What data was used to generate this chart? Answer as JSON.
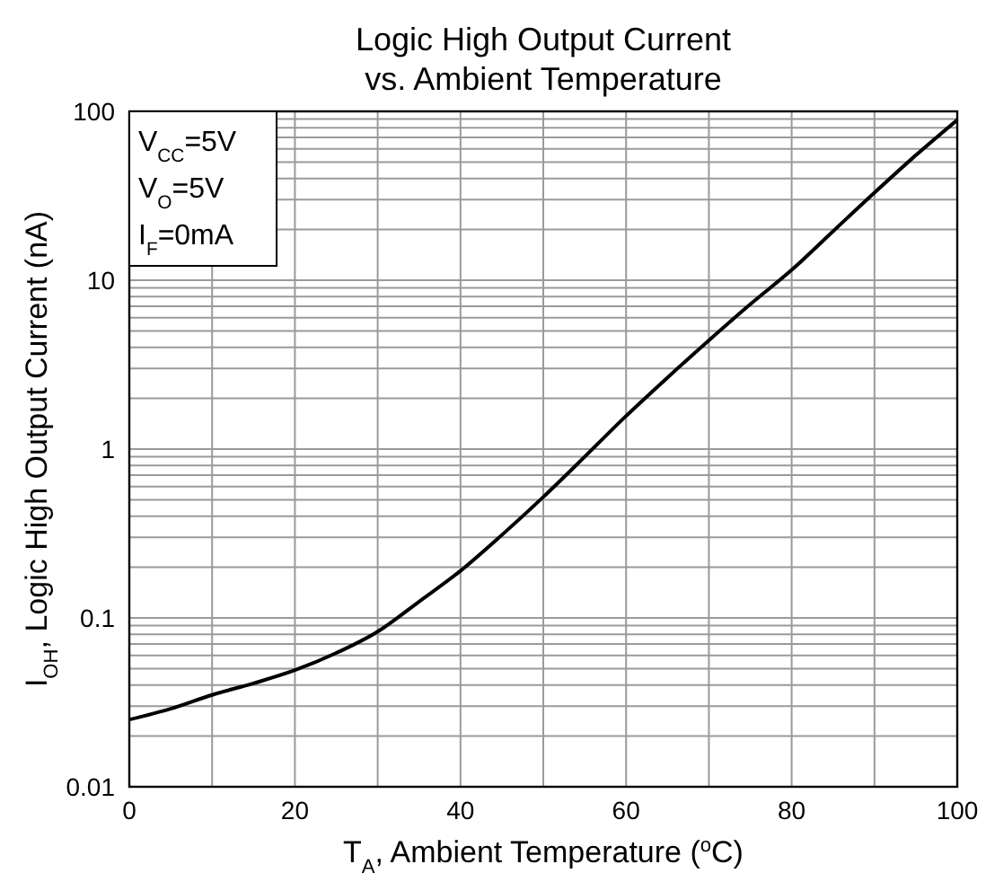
{
  "chart_data": {
    "type": "line",
    "title": "Logic High Output Current\nvs. Ambient Temperature",
    "xlabel": "T$_{A}$, Ambient Temperature ($^{o}$C)",
    "ylabel": "I$_{OH}$, Logic High Output Current (nA)",
    "annotations": [
      "V$_{CC}$=5V",
      "V$_{O}$=5V",
      "I$_{F}$=0mA"
    ],
    "x": [
      0,
      5,
      10,
      15,
      20,
      25,
      30,
      35,
      40,
      45,
      50,
      55,
      60,
      65,
      70,
      75,
      80,
      85,
      90,
      95,
      100
    ],
    "series": [
      {
        "color": "#000000",
        "values": [
          0.025,
          0.029,
          0.035,
          0.041,
          0.049,
          0.062,
          0.083,
          0.125,
          0.19,
          0.31,
          0.52,
          0.9,
          1.57,
          2.65,
          4.4,
          7.2,
          11.5,
          19.5,
          33,
          55,
          89
        ]
      }
    ],
    "xlim": [
      0,
      100
    ],
    "xticks": [
      0,
      {
        "value": 10,
        "label": null
      },
      20,
      {
        "value": 30,
        "label": null
      },
      40,
      {
        "value": 50,
        "label": null
      },
      60,
      {
        "value": 70,
        "label": null
      },
      80,
      {
        "value": 90,
        "label": null
      },
      100
    ],
    "ylim": [
      0.01,
      100
    ],
    "yticks": [
      0.01,
      {
        "value": 0.02,
        "label": null
      },
      {
        "value": 0.03,
        "label": null
      },
      {
        "value": 0.04,
        "label": null
      },
      {
        "value": 0.05,
        "label": null
      },
      {
        "value": 0.06,
        "label": null
      },
      {
        "value": 0.07,
        "label": null
      },
      {
        "value": 0.08,
        "label": null
      },
      {
        "value": 0.09,
        "label": null
      },
      0.1,
      {
        "value": 0.2,
        "label": null
      },
      {
        "value": 0.3,
        "label": null
      },
      {
        "value": 0.4,
        "label": null
      },
      {
        "value": 0.5,
        "label": null
      },
      {
        "value": 0.6,
        "label": null
      },
      {
        "value": 0.7,
        "label": null
      },
      {
        "value": 0.8,
        "label": null
      },
      {
        "value": 0.9,
        "label": null
      },
      1,
      {
        "value": 2,
        "label": null
      },
      {
        "value": 3,
        "label": null
      },
      {
        "value": 4,
        "label": null
      },
      {
        "value": 5,
        "label": null
      },
      {
        "value": 6,
        "label": null
      },
      {
        "value": 7,
        "label": null
      },
      {
        "value": 8,
        "label": null
      },
      {
        "value": 9,
        "label": null
      },
      10,
      {
        "value": 20,
        "label": null
      },
      {
        "value": 30,
        "label": null
      },
      {
        "value": 40,
        "label": null
      },
      {
        "value": 50,
        "label": null
      },
      {
        "value": 60,
        "label": null
      },
      {
        "value": 70,
        "label": null
      },
      {
        "value": 80,
        "label": null
      },
      {
        "value": 90,
        "label": null
      },
      100
    ],
    "log": true,
    "grid": true,
    "marker": "none",
    "line_style": "solid"
  }
}
